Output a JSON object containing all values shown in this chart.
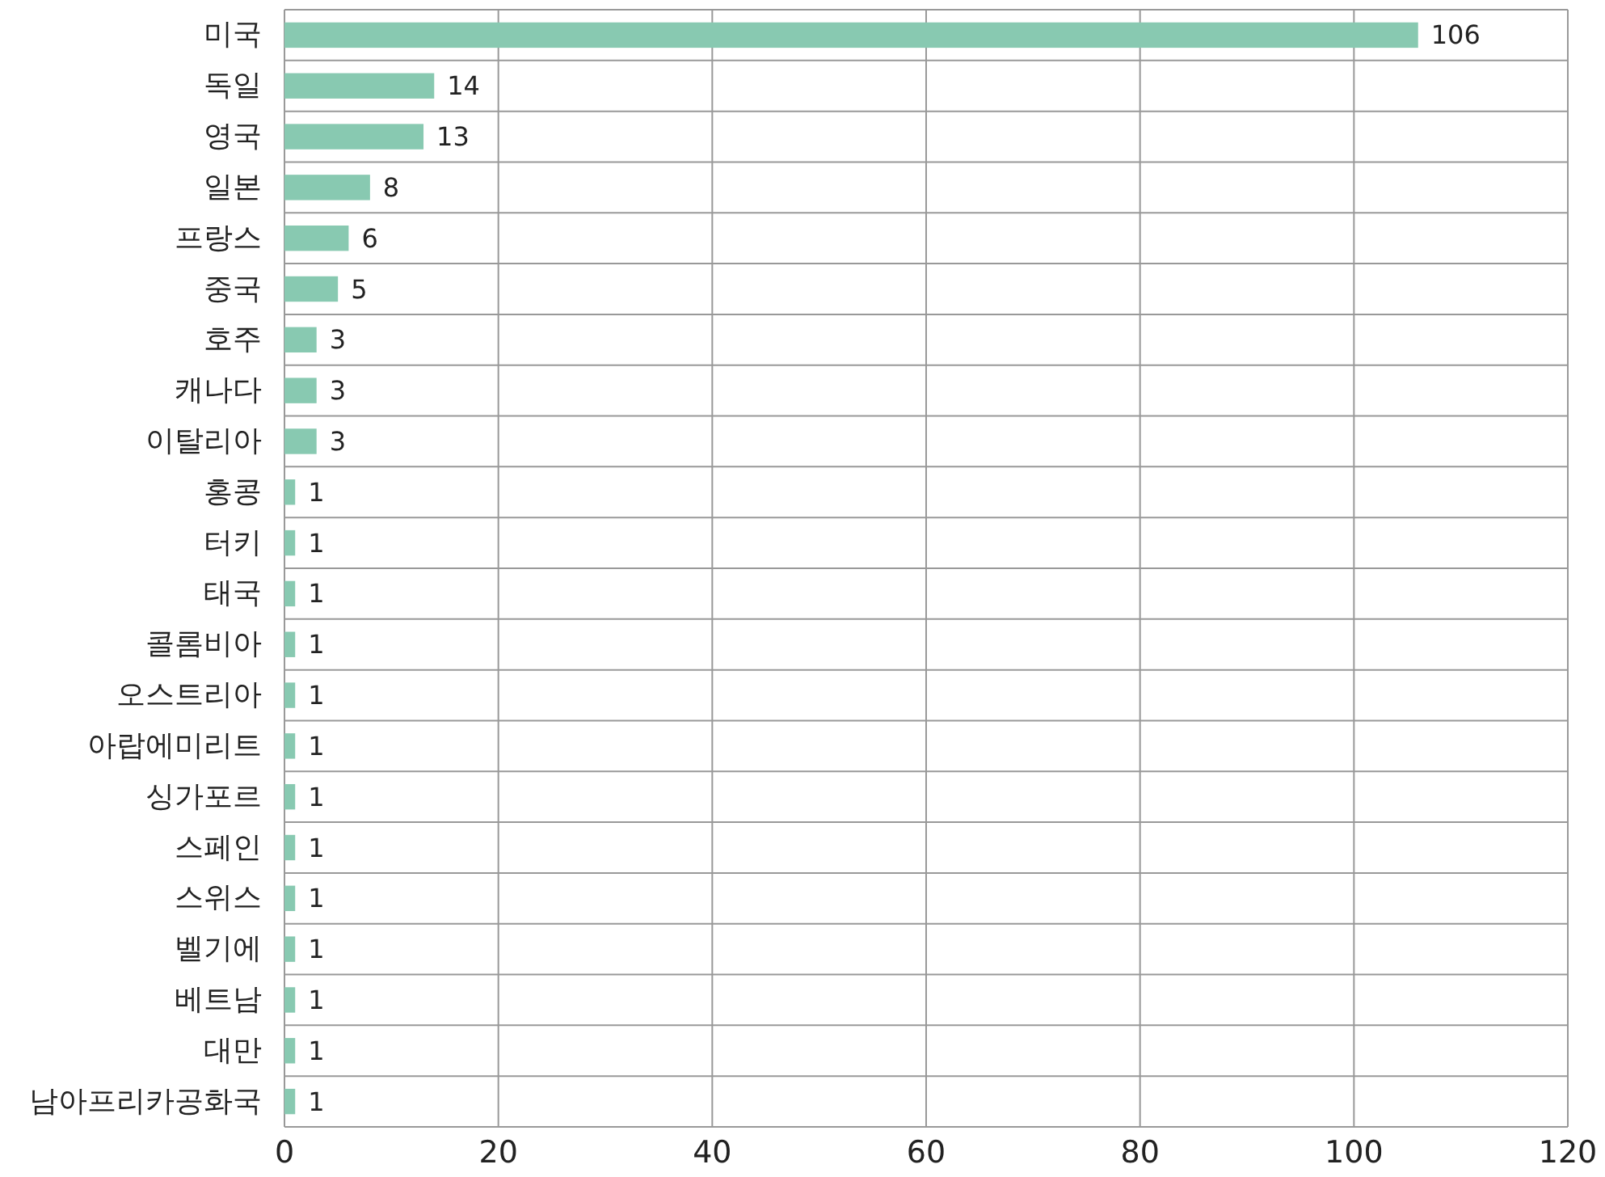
{
  "chart_data": {
    "type": "bar",
    "orientation": "horizontal",
    "categories": [
      "미국",
      "독일",
      "영국",
      "일본",
      "프랑스",
      "중국",
      "호주",
      "캐나다",
      "이탈리아",
      "홍콩",
      "터키",
      "태국",
      "콜롬비아",
      "오스트리아",
      "아랍에미리트",
      "싱가포르",
      "스페인",
      "스위스",
      "벨기에",
      "베트남",
      "대만",
      "남아프리카공화국"
    ],
    "values": [
      106,
      14,
      13,
      8,
      6,
      5,
      3,
      3,
      3,
      1,
      1,
      1,
      1,
      1,
      1,
      1,
      1,
      1,
      1,
      1,
      1,
      1
    ],
    "color": "#88c9b1",
    "xlim": [
      0,
      120
    ],
    "xticks": [
      0,
      20,
      40,
      60,
      80,
      100,
      120
    ],
    "grid": true,
    "data_labels": true
  }
}
